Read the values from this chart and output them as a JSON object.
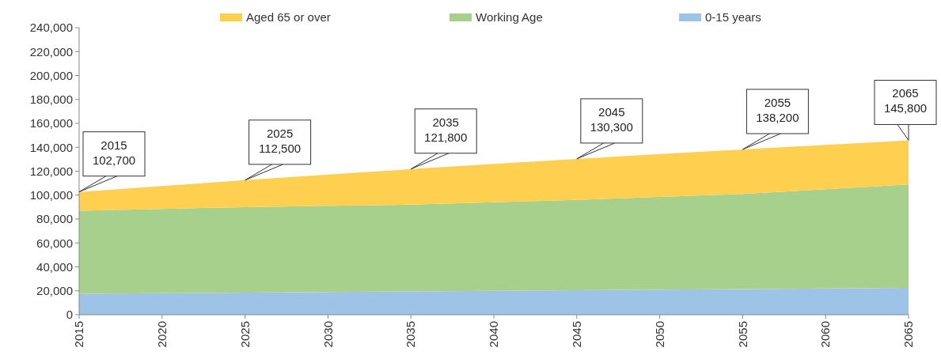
{
  "chart_data": {
    "type": "area",
    "stacked": true,
    "x": [
      2015,
      2020,
      2025,
      2030,
      2035,
      2040,
      2045,
      2050,
      2055,
      2060,
      2065
    ],
    "series": [
      {
        "name": "0-15 years",
        "color": "#9dc3e6",
        "values": [
          17500,
          18000,
          18500,
          19000,
          19500,
          20000,
          20500,
          21000,
          21500,
          22000,
          22500
        ]
      },
      {
        "name": "Working Age",
        "color": "#a8d08d",
        "values": [
          69500,
          70500,
          71500,
          72000,
          72500,
          74000,
          75500,
          77500,
          79500,
          83000,
          86500
        ]
      },
      {
        "name": "Aged 65 or over",
        "color": "#ffd050",
        "values": [
          15700,
          19100,
          22500,
          26200,
          29800,
          32100,
          34300,
          35800,
          37200,
          37000,
          36800
        ]
      }
    ],
    "xlim": [
      2015,
      2065
    ],
    "xticks": [
      2015,
      2020,
      2025,
      2030,
      2035,
      2040,
      2045,
      2050,
      2055,
      2060,
      2065
    ],
    "ylim": [
      0,
      240000
    ],
    "yticks": [
      {
        "value": 0,
        "label": "0"
      },
      {
        "value": 20000,
        "label": "20,000"
      },
      {
        "value": 40000,
        "label": "40,000"
      },
      {
        "value": 60000,
        "label": "60,000"
      },
      {
        "value": 80000,
        "label": "80,000"
      },
      {
        "value": 100000,
        "label": "100,000"
      },
      {
        "value": 120000,
        "label": "120,000"
      },
      {
        "value": 140000,
        "label": "140,000"
      },
      {
        "value": 160000,
        "label": "160,000"
      },
      {
        "value": 180000,
        "label": "180,000"
      },
      {
        "value": 200000,
        "label": "200,000"
      },
      {
        "value": 220000,
        "label": "220,000"
      },
      {
        "value": 240000,
        "label": "240,000"
      }
    ],
    "grid": false,
    "legend": "top",
    "annotations": [
      {
        "text": "2015\n102,700",
        "x": 2015,
        "y": 102700
      },
      {
        "text": "2025\n112,500",
        "x": 2025,
        "y": 112500
      },
      {
        "text": "2035\n121,800",
        "x": 2035,
        "y": 121800
      },
      {
        "text": "2045\n130,300",
        "x": 2045,
        "y": 130300
      },
      {
        "text": "2055\n138,200",
        "x": 2055,
        "y": 138200
      },
      {
        "text": "2065\n145,800",
        "x": 2065,
        "y": 145800
      }
    ]
  }
}
